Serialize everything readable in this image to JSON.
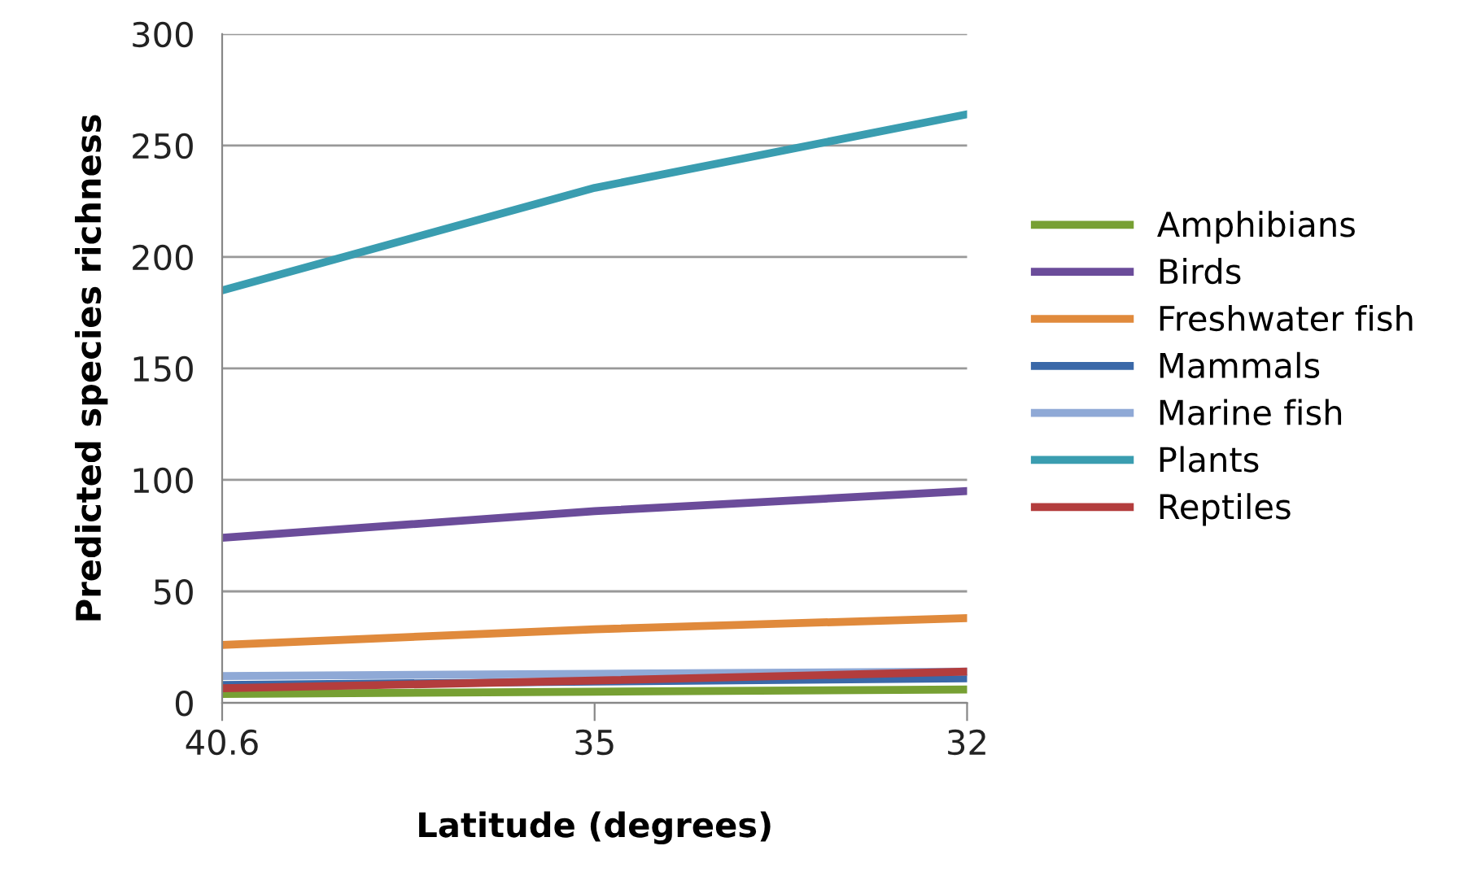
{
  "chart_data": {
    "type": "line",
    "xlabel": "Latitude (degrees)",
    "ylabel": "Predicted species richness",
    "categories": [
      "40.6",
      "35",
      "32"
    ],
    "series": [
      {
        "name": "Amphibians",
        "color": "#77a033",
        "values": [
          4,
          5,
          6
        ]
      },
      {
        "name": "Birds",
        "color": "#6b4c9a",
        "values": [
          74,
          86,
          95
        ]
      },
      {
        "name": "Freshwater fish",
        "color": "#e08a3c",
        "values": [
          26,
          33,
          38
        ]
      },
      {
        "name": "Mammals",
        "color": "#3a68a8",
        "values": [
          8,
          9.5,
          11
        ]
      },
      {
        "name": "Marine fish",
        "color": "#8fa9d6",
        "values": [
          12,
          13,
          14
        ]
      },
      {
        "name": "Plants",
        "color": "#3a9db0",
        "values": [
          185,
          231,
          264
        ]
      },
      {
        "name": "Reptiles",
        "color": "#b33d3d",
        "values": [
          6.5,
          10,
          14
        ]
      }
    ],
    "ylim": [
      0,
      300
    ],
    "yticks": [
      0,
      50,
      100,
      150,
      200,
      250,
      300
    ],
    "grid": "y",
    "legend": "right",
    "marker": "none",
    "line_style": "solid"
  }
}
